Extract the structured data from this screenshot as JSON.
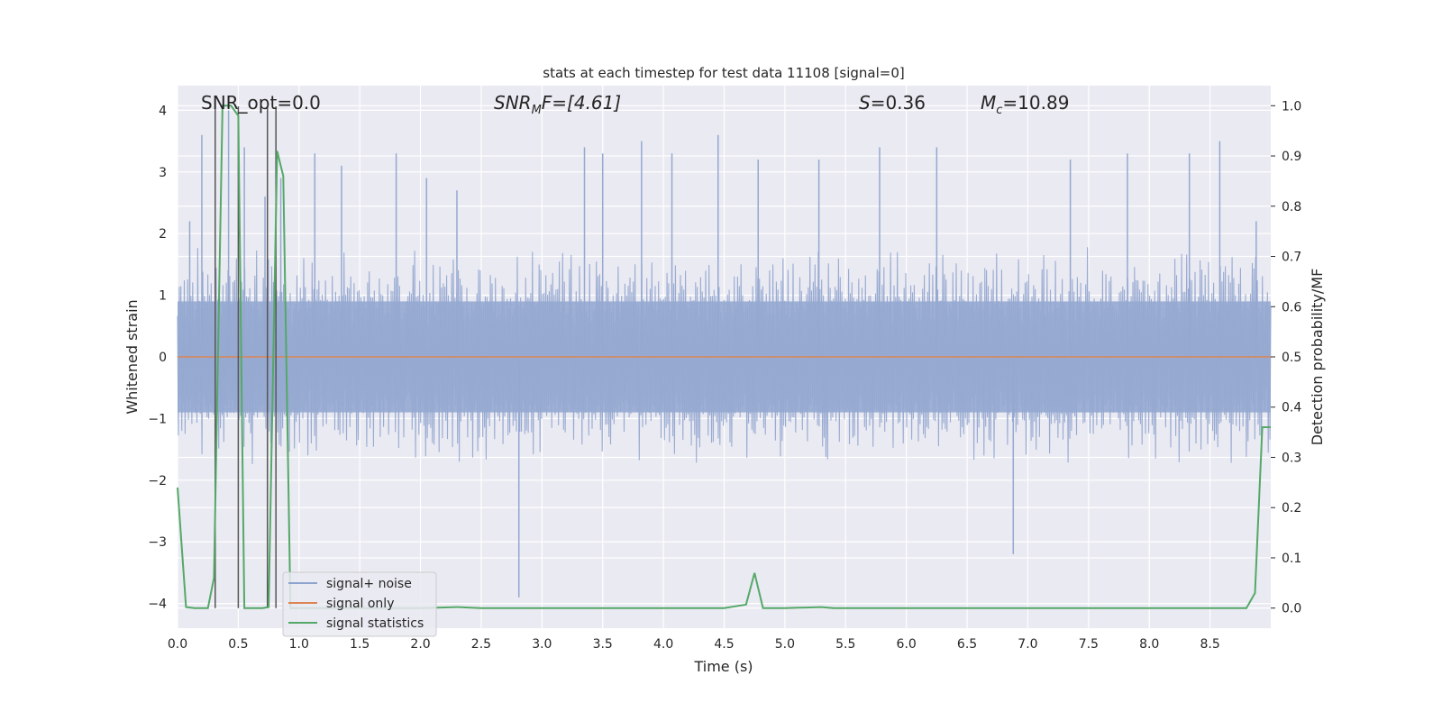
{
  "chart_data": {
    "type": "line",
    "title": "stats at each timestep for test data 11108 [signal=0]",
    "xlabel": "Time (s)",
    "ylabel_left": "Whitened strain",
    "ylabel_right": "Detection probability/MF",
    "xlim": [
      0.0,
      9.0
    ],
    "ylim_left": [
      -4.4,
      4.4
    ],
    "ylim_right": [
      -0.04,
      1.04
    ],
    "xticks": [
      "0.0",
      "0.5",
      "1.0",
      "1.5",
      "2.0",
      "2.5",
      "3.0",
      "3.5",
      "4.0",
      "4.5",
      "5.0",
      "5.5",
      "6.0",
      "6.5",
      "7.0",
      "7.5",
      "8.0",
      "8.5"
    ],
    "yticks_left": [
      "4",
      "3",
      "2",
      "1",
      "0",
      "−1",
      "−2",
      "−3",
      "−4"
    ],
    "yticks_right": [
      "1.0",
      "0.9",
      "0.8",
      "0.7",
      "0.6",
      "0.5",
      "0.4",
      "0.3",
      "0.2",
      "0.1",
      "0.0"
    ],
    "grid": true,
    "background": "#eaeaf2",
    "annotations": {
      "snr_opt": "SNR_opt=0.0",
      "snr_mf_base": "SNR",
      "snr_mf_sub": "M",
      "snr_mf_rest": "F=[4.61]",
      "s_stat_label": "S",
      "s_stat_value": "=0.36",
      "mc_base": "M",
      "mc_sub": "c",
      "mc_value": "=10.89"
    },
    "legend": {
      "placement": "lower-left",
      "entries": [
        {
          "label": "signal+ noise",
          "color": "#8fa3cf"
        },
        {
          "label": "signal only",
          "color": "#dd8452"
        },
        {
          "label": "signal statistics",
          "color": "#55a868"
        }
      ]
    },
    "series": [
      {
        "name": "signal+ noise",
        "color": "#95a8d0",
        "style": "dense noise, approx. +/-1.8 with spikes up to 4",
        "typical_amplitude": 1.8,
        "spikes_x": [
          0.1,
          0.2,
          0.42,
          0.55,
          0.72,
          0.85,
          1.13,
          1.35,
          1.8,
          2.05,
          2.3,
          2.81,
          3.35,
          3.5,
          3.82,
          4.07,
          4.45,
          4.78,
          5.28,
          5.78,
          6.25,
          6.88,
          7.35,
          7.82,
          8.33,
          8.58,
          8.88
        ],
        "spikes_y": [
          2.2,
          3.6,
          4.0,
          3.4,
          2.6,
          2.9,
          3.3,
          3.1,
          3.3,
          2.9,
          2.7,
          -3.9,
          3.4,
          3.3,
          3.5,
          3.3,
          3.6,
          3.2,
          3.2,
          3.4,
          3.4,
          -3.2,
          3.2,
          3.3,
          3.3,
          3.5,
          2.2
        ]
      },
      {
        "name": "signal only",
        "color": "#dd8452",
        "x": [
          0.0,
          9.0
        ],
        "y": [
          0.0,
          0.0
        ]
      },
      {
        "name": "signal statistics",
        "color": "#55a868",
        "axis": "right",
        "x": [
          0.0,
          0.07,
          0.14,
          0.25,
          0.3,
          0.37,
          0.44,
          0.5,
          0.55,
          0.62,
          0.7,
          0.75,
          0.82,
          0.87,
          0.93,
          1.0,
          1.5,
          2.0,
          2.3,
          2.5,
          3.0,
          3.5,
          4.0,
          4.5,
          4.68,
          4.75,
          4.82,
          4.88,
          5.0,
          5.3,
          5.4,
          6.0,
          7.0,
          8.0,
          8.8,
          8.87,
          8.93,
          9.0
        ],
        "y": [
          0.24,
          0.002,
          0.0,
          0.0,
          0.06,
          1.0,
          1.0,
          0.98,
          0.0,
          0.0,
          0.0,
          0.002,
          0.91,
          0.86,
          0.0,
          0.0,
          0.0,
          0.0,
          0.002,
          0.0,
          0.0,
          0.0,
          0.0,
          0.0,
          0.007,
          0.07,
          0.0,
          0.0,
          0.0,
          0.002,
          0.0,
          0.0,
          0.0,
          0.0,
          0.0,
          0.03,
          0.36,
          0.36
        ]
      },
      {
        "name": "marker lines",
        "color": "#555555",
        "x": [
          0.31,
          0.5,
          0.74,
          0.81
        ]
      }
    ]
  }
}
